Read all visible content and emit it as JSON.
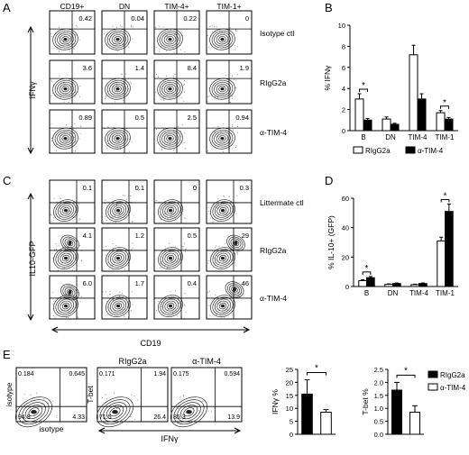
{
  "panel_letters": [
    "A",
    "B",
    "C",
    "D",
    "E"
  ],
  "panelA": {
    "col_headers": [
      "CD19+",
      "DN",
      "TIM-4+",
      "TIM-1+"
    ],
    "row_labels": [
      "Isotype ctl",
      "RIgG2a",
      "α-TIM-4"
    ],
    "y_axis_label": "IFNγ",
    "values": [
      [
        "0.42",
        "0.04",
        "0.22",
        "0"
      ],
      [
        "3.6",
        "1.4",
        "8.4",
        "1.9"
      ],
      [
        "0.89",
        "0.5",
        "2.5",
        "0.94"
      ]
    ]
  },
  "panelC": {
    "row_labels": [
      "Littermate ctl",
      "RIgG2a",
      "α-TIM-4"
    ],
    "y_axis_label": "IL10-GFP",
    "x_axis_label": "CD19",
    "values": [
      [
        "0.1",
        "0.1",
        "0",
        "0.3"
      ],
      [
        "4.1",
        "1.2",
        "0.5",
        "29"
      ],
      [
        "6.0",
        "1.7",
        "0.4",
        "46"
      ]
    ]
  },
  "panelE": {
    "plots": [
      {
        "title": "",
        "ylabel": "isotype",
        "xlabel": "isotype",
        "q": [
          "0.184",
          "0.645",
          "94.8",
          "4.33"
        ]
      },
      {
        "title": "RIgG2a",
        "ylabel": "T-bet",
        "xlabel": "",
        "q": [
          "0.171",
          "1.94",
          "71.5",
          "26.4"
        ]
      },
      {
        "title": "α-TIM-4",
        "ylabel": "",
        "xlabel": "",
        "q": [
          "0.175",
          "0.594",
          "85.3",
          "13.9"
        ]
      }
    ],
    "shared_xlabel": "IFNγ"
  },
  "colors": {
    "filled": "#000000",
    "open": "#ffffff",
    "axis": "#000000"
  },
  "chart_data": [
    {
      "panel": "B",
      "type": "bar",
      "categories": [
        "B",
        "DN",
        "TIM-4",
        "TIM-1"
      ],
      "ylabel": "% IFNγ",
      "ylim": [
        0,
        10
      ],
      "yticks": [
        0,
        2,
        4,
        6,
        8,
        10
      ],
      "legend_position": "bottom",
      "series": [
        {
          "name": "RIgG2a",
          "fill": "open",
          "values": [
            3.0,
            1.1,
            7.2,
            1.7
          ],
          "errors": [
            0.5,
            0.2,
            0.9,
            0.2
          ]
        },
        {
          "name": "α-TIM-4",
          "fill": "filled",
          "values": [
            1.0,
            0.6,
            3.0,
            1.1
          ],
          "errors": [
            0.15,
            0.1,
            0.5,
            0.15
          ]
        }
      ],
      "significance": [
        {
          "category": "B",
          "label": "*"
        },
        {
          "category": "TIM-1",
          "label": "*"
        }
      ]
    },
    {
      "panel": "D",
      "type": "bar",
      "categories": [
        "B",
        "DN",
        "TIM-4",
        "TIM-1"
      ],
      "ylabel": "% IL-10+ (GFP)",
      "ylim": [
        0,
        60
      ],
      "yticks": [
        0,
        20,
        40,
        60
      ],
      "series": [
        {
          "name": "RIgG2a",
          "fill": "open",
          "values": [
            4,
            1.5,
            1.3,
            31
          ],
          "errors": [
            0.6,
            0.3,
            0.3,
            2.5
          ]
        },
        {
          "name": "α-TIM-4",
          "fill": "filled",
          "values": [
            6,
            2,
            2,
            51
          ],
          "errors": [
            0.8,
            0.4,
            0.4,
            5
          ]
        }
      ],
      "significance": [
        {
          "category": "B",
          "label": "*"
        },
        {
          "category": "TIM-1",
          "label": "*"
        }
      ]
    },
    {
      "panel": "E-IFNg",
      "type": "bar",
      "categories": [
        "RIgG2a",
        "α-TIM-4"
      ],
      "ylabel": "IFNγ %",
      "ylim": [
        0,
        25
      ],
      "yticks": [
        0,
        5,
        10,
        15,
        20,
        25
      ],
      "series": [
        {
          "name": "",
          "fills": [
            "filled",
            "open"
          ],
          "values": [
            15.5,
            8.5
          ],
          "errors": [
            5.5,
            1.0
          ]
        }
      ],
      "significance": [
        {
          "label": "*"
        }
      ]
    },
    {
      "panel": "E-Tbet",
      "type": "bar",
      "categories": [
        "RIgG2a",
        "α-TIM-4"
      ],
      "ylabel": "T-bet %",
      "ylim": [
        0,
        2.5
      ],
      "yticks": [
        0.0,
        0.5,
        1.0,
        1.5,
        2.0,
        2.5
      ],
      "legend_position": "right",
      "series": [
        {
          "name": "",
          "fills": [
            "filled",
            "open"
          ],
          "values": [
            1.7,
            0.85
          ],
          "errors": [
            0.3,
            0.25
          ]
        }
      ],
      "significance": [
        {
          "label": "*"
        }
      ],
      "legend": [
        "RIgG2a",
        "α-TIM-4"
      ]
    }
  ]
}
